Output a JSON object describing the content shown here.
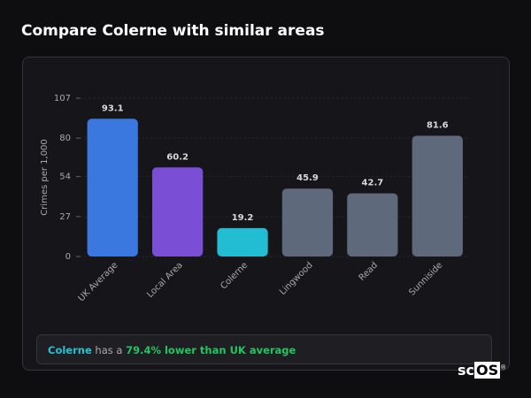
{
  "header": {
    "title": "Compare Colerne with similar areas"
  },
  "chart_data": {
    "type": "bar",
    "y_label": "Crimes per 1,000",
    "categories": [
      "UK Average",
      "Local Area",
      "Colerne",
      "Lingwood",
      "Read",
      "Sunniside"
    ],
    "values": [
      93.1,
      60.2,
      19.2,
      45.9,
      42.7,
      81.6
    ],
    "colors": [
      "#3a78df",
      "#7a4fd6",
      "#22bdd3",
      "#5e6a7b",
      "#5e6a7b",
      "#5e6a7b"
    ],
    "ylim": [
      0,
      107
    ],
    "yticks": [
      0,
      27,
      54,
      80,
      107
    ],
    "grid": true
  },
  "footer": {
    "area": "Colerne",
    "text": "has a",
    "comparison": "79.4% lower than UK average"
  },
  "brand": [
    "sc",
    "OS",
    "®"
  ]
}
